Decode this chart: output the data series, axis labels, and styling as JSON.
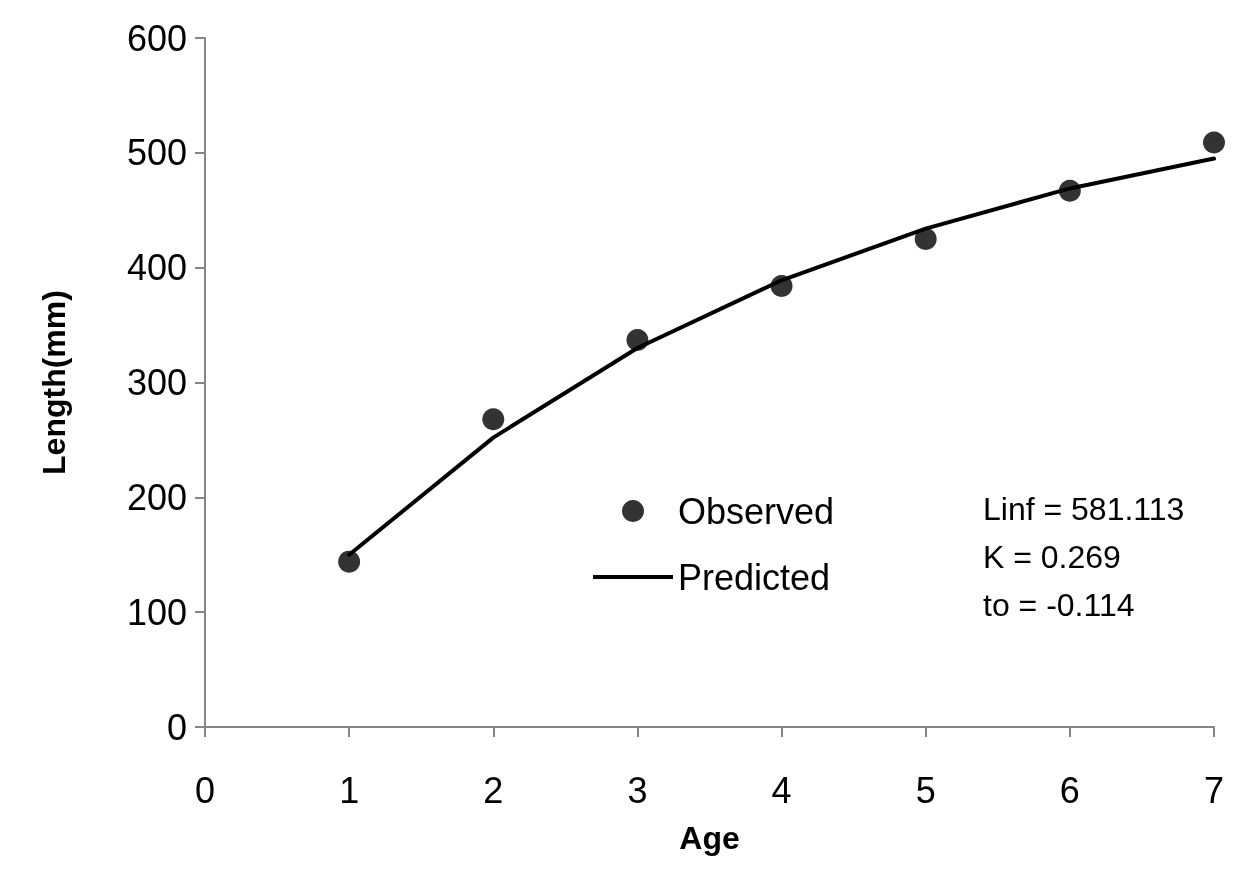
{
  "chart_data": {
    "type": "scatter",
    "xlabel": "Age",
    "ylabel": "Length(mm)",
    "series": [
      {
        "name": "Observed",
        "color": "#000000",
        "marker": "circle",
        "x": [
          1,
          2,
          3,
          4,
          5,
          6,
          7
        ],
        "values": [
          144,
          268,
          337,
          384,
          425,
          467,
          509
        ]
      },
      {
        "name": "Predicted",
        "type": "line",
        "color": "#000000",
        "marker": "none",
        "line_style": "solid",
        "x": [
          1,
          2,
          3,
          4,
          5,
          6,
          7
        ],
        "values": [
          150,
          252,
          330,
          389,
          434,
          469,
          495
        ]
      }
    ],
    "xlim": [
      0,
      7
    ],
    "xticks": [
      0,
      1,
      2,
      3,
      4,
      5,
      6,
      7
    ],
    "ylim": [
      0,
      600
    ],
    "yticks": [
      0,
      100,
      200,
      300,
      400,
      500,
      600
    ],
    "grid": false,
    "legend": "right",
    "annotations": [
      "Linf = 581.113",
      "K = 0.269",
      "to = -0.114"
    ]
  }
}
